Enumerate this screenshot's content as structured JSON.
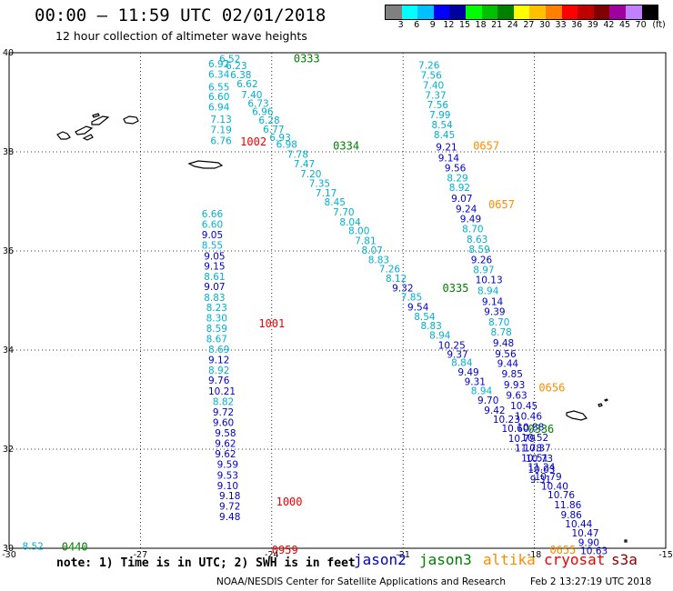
{
  "header": {
    "title": "00:00 – 11:59 UTC 02/01/2018",
    "subtitle": "12 hour collection of altimeter wave heights"
  },
  "scale": {
    "unit": "(ft)",
    "colors": [
      "#808080",
      "#00ffff",
      "#00c0ff",
      "#0000ff",
      "#0000a0",
      "#00ff00",
      "#00c000",
      "#008000",
      "#ffff00",
      "#ffc000",
      "#ff8000",
      "#ff0000",
      "#c00000",
      "#800000",
      "#a000a0",
      "#c080ff",
      "#000000"
    ],
    "labels": [
      "3",
      "6",
      "9",
      "12",
      "15",
      "18",
      "21",
      "24",
      "27",
      "30",
      "33",
      "36",
      "39",
      "42",
      "45",
      "70"
    ]
  },
  "axes": {
    "x_ticks": [
      "-30",
      "-27",
      "-24",
      "-21",
      "-18",
      "-15"
    ],
    "y_ticks": [
      "40",
      "38",
      "36",
      "34",
      "32",
      "30"
    ]
  },
  "tracks": [
    {
      "name": "track-0333",
      "time": "0333",
      "time_color": "#008000",
      "time_pos": [
        -23.5,
        39.9
      ],
      "points": [
        {
          "v": "6.52",
          "x": -25.2,
          "y": 39.88,
          "c": "#00b0d0"
        },
        {
          "v": "6.92",
          "x": -25.45,
          "y": 39.78,
          "c": "#00b0d0"
        },
        {
          "v": "6.23",
          "x": -25.05,
          "y": 39.74,
          "c": "#00b0d0"
        },
        {
          "v": "6.34",
          "x": -25.45,
          "y": 39.57,
          "c": "#00b0d0"
        },
        {
          "v": "6.38",
          "x": -24.95,
          "y": 39.56,
          "c": "#00b0d0"
        },
        {
          "v": "6.62",
          "x": -24.8,
          "y": 39.38,
          "c": "#00b0d0"
        },
        {
          "v": "6.55",
          "x": -25.45,
          "y": 39.31,
          "c": "#00b0d0"
        },
        {
          "v": "7.40",
          "x": -24.7,
          "y": 39.16,
          "c": "#00b0d0"
        },
        {
          "v": "6.60",
          "x": -25.45,
          "y": 39.12,
          "c": "#00b0d0"
        },
        {
          "v": "6.73",
          "x": -24.55,
          "y": 38.98,
          "c": "#00b0d0"
        },
        {
          "v": "6.94",
          "x": -25.45,
          "y": 38.91,
          "c": "#00b0d0"
        },
        {
          "v": "6.96",
          "x": -24.45,
          "y": 38.82,
          "c": "#00b0d0"
        },
        {
          "v": "7.13",
          "x": -25.4,
          "y": 38.66,
          "c": "#00b0d0"
        },
        {
          "v": "6.28",
          "x": -24.3,
          "y": 38.64,
          "c": "#00b0d0"
        },
        {
          "v": "7.19",
          "x": -25.4,
          "y": 38.45,
          "c": "#00b0d0"
        },
        {
          "v": "6.77",
          "x": -24.2,
          "y": 38.46,
          "c": "#00b0d0"
        },
        {
          "v": "6.93",
          "x": -24.05,
          "y": 38.29,
          "c": "#00b0d0"
        },
        {
          "v": "6.76",
          "x": -25.4,
          "y": 38.23,
          "c": "#00b0d0"
        },
        {
          "v": "6.98",
          "x": -23.9,
          "y": 38.16,
          "c": "#00b0d0"
        }
      ]
    },
    {
      "name": "track-0334",
      "time": "0334",
      "time_color": "#008000",
      "time_pos": [
        -22.6,
        38.14
      ],
      "points": [
        {
          "v": "7.78",
          "x": -23.65,
          "y": 37.95,
          "c": "#00b0d0"
        },
        {
          "v": "7.47",
          "x": -23.5,
          "y": 37.76,
          "c": "#00b0d0"
        },
        {
          "v": "7.20",
          "x": -23.35,
          "y": 37.56,
          "c": "#00b0d0"
        },
        {
          "v": "7.35",
          "x": -23.15,
          "y": 37.37,
          "c": "#00b0d0"
        },
        {
          "v": "7.17",
          "x": -23.0,
          "y": 37.17,
          "c": "#00b0d0"
        },
        {
          "v": "8.45",
          "x": -22.8,
          "y": 36.99,
          "c": "#00b0d0"
        },
        {
          "v": "7.70",
          "x": -22.6,
          "y": 36.79,
          "c": "#00b0d0"
        },
        {
          "v": "8.04",
          "x": -22.45,
          "y": 36.59,
          "c": "#00b0d0"
        },
        {
          "v": "8.00",
          "x": -22.25,
          "y": 36.41,
          "c": "#00b0d0"
        },
        {
          "v": "7.81",
          "x": -22.1,
          "y": 36.21,
          "c": "#00b0d0"
        },
        {
          "v": "8.07",
          "x": -21.95,
          "y": 36.02,
          "c": "#00b0d0"
        },
        {
          "v": "8.83",
          "x": -21.8,
          "y": 35.83,
          "c": "#00b0d0"
        },
        {
          "v": "7.26",
          "x": -21.55,
          "y": 35.64,
          "c": "#00b0d0"
        },
        {
          "v": "8.12",
          "x": -21.4,
          "y": 35.45,
          "c": "#00b0d0"
        }
      ]
    },
    {
      "name": "track-0335",
      "time": "0335",
      "time_color": "#008000",
      "time_pos": [
        -20.1,
        35.27
      ],
      "points": [
        {
          "v": "9.32",
          "x": -21.25,
          "y": 35.26,
          "c": "#0000cc"
        },
        {
          "v": "7.85",
          "x": -21.05,
          "y": 35.07,
          "c": "#00b0d0"
        },
        {
          "v": "9.54",
          "x": -20.9,
          "y": 34.87,
          "c": "#0000cc"
        },
        {
          "v": "8.54",
          "x": -20.75,
          "y": 34.68,
          "c": "#00b0d0"
        },
        {
          "v": "8.83",
          "x": -20.6,
          "y": 34.5,
          "c": "#00b0d0"
        },
        {
          "v": "8.94",
          "x": -20.4,
          "y": 34.3,
          "c": "#00b0d0"
        },
        {
          "v": "10.25",
          "x": -20.2,
          "y": 34.1,
          "c": "#0000cc"
        },
        {
          "v": "9.37",
          "x": -20.0,
          "y": 33.92,
          "c": "#0000cc"
        },
        {
          "v": "8.84",
          "x": -19.9,
          "y": 33.75,
          "c": "#00b0d0"
        },
        {
          "v": "9.49",
          "x": -19.75,
          "y": 33.56,
          "c": "#0000cc"
        },
        {
          "v": "9.31",
          "x": -19.6,
          "y": 33.37,
          "c": "#0000cc"
        },
        {
          "v": "8.94",
          "x": -19.45,
          "y": 33.18,
          "c": "#00b0d0"
        },
        {
          "v": "9.70",
          "x": -19.3,
          "y": 32.99,
          "c": "#0000cc"
        },
        {
          "v": "9.42",
          "x": -19.15,
          "y": 32.79,
          "c": "#0000cc"
        },
        {
          "v": "10.23",
          "x": -18.95,
          "y": 32.61,
          "c": "#0000cc"
        },
        {
          "v": "10.60",
          "x": -18.75,
          "y": 32.42,
          "c": "#0000cc"
        }
      ]
    },
    {
      "name": "track-0336",
      "time": "0336",
      "time_color": "#008000",
      "time_pos": [
        -18.15,
        32.42
      ],
      "points": [
        {
          "v": "10.79",
          "x": -18.6,
          "y": 32.22,
          "c": "#0000cc"
        },
        {
          "v": "11.78",
          "x": -18.45,
          "y": 32.03,
          "c": "#0000cc"
        },
        {
          "v": "10.51",
          "x": -18.3,
          "y": 31.83,
          "c": "#0000cc"
        },
        {
          "v": "11.24",
          "x": -18.15,
          "y": 31.64,
          "c": "#0000cc"
        },
        {
          "v": "10.79",
          "x": -18.0,
          "y": 31.45,
          "c": "#0000cc"
        },
        {
          "v": "10.40",
          "x": -17.85,
          "y": 31.26,
          "c": "#0000cc"
        },
        {
          "v": "10.76",
          "x": -17.7,
          "y": 31.08,
          "c": "#0000cc"
        },
        {
          "v": "11.86",
          "x": -17.55,
          "y": 30.88,
          "c": "#0000cc"
        },
        {
          "v": "9.86",
          "x": -17.4,
          "y": 30.68,
          "c": "#0000cc"
        },
        {
          "v": "10.44",
          "x": -17.3,
          "y": 30.5,
          "c": "#0000cc"
        },
        {
          "v": "10.47",
          "x": -17.15,
          "y": 30.31,
          "c": "#0000cc"
        },
        {
          "v": "9.90",
          "x": -17.0,
          "y": 30.12,
          "c": "#0000cc"
        },
        {
          "v": "10.63",
          "x": -16.95,
          "y": 29.95,
          "c": "#0000cc"
        }
      ]
    },
    {
      "name": "track-0657",
      "time": "0657",
      "time_color": "#ff8c00",
      "time_pos": [
        -19.4,
        38.14
      ],
      "points": [
        {
          "v": "7.26",
          "x": -20.65,
          "y": 39.75,
          "c": "#00b0d0"
        },
        {
          "v": "7.56",
          "x": -20.6,
          "y": 39.55,
          "c": "#00b0d0"
        },
        {
          "v": "7.40",
          "x": -20.55,
          "y": 39.35,
          "c": "#00b0d0"
        },
        {
          "v": "7.37",
          "x": -20.5,
          "y": 39.15,
          "c": "#00b0d0"
        },
        {
          "v": "7.56",
          "x": -20.45,
          "y": 38.95,
          "c": "#00b0d0"
        },
        {
          "v": "7.99",
          "x": -20.4,
          "y": 38.75,
          "c": "#00b0d0"
        },
        {
          "v": "8.54",
          "x": -20.35,
          "y": 38.55,
          "c": "#00b0d0"
        },
        {
          "v": "8.45",
          "x": -20.3,
          "y": 38.35,
          "c": "#00b0d0"
        },
        {
          "v": "9.21",
          "x": -20.25,
          "y": 38.1,
          "c": "#0000cc"
        },
        {
          "v": "9.14",
          "x": -20.2,
          "y": 37.88,
          "c": "#0000cc"
        },
        {
          "v": "9.56",
          "x": -20.05,
          "y": 37.68,
          "c": "#0000cc"
        },
        {
          "v": "8.29",
          "x": -20.0,
          "y": 37.48,
          "c": "#00b0d0"
        },
        {
          "v": "8.92",
          "x": -19.95,
          "y": 37.28,
          "c": "#00b0d0"
        },
        {
          "v": "9.07",
          "x": -19.9,
          "y": 37.06,
          "c": "#0000cc"
        },
        {
          "v": "9.24",
          "x": -19.8,
          "y": 36.85,
          "c": "#0000cc"
        },
        {
          "v": "9.49",
          "x": -19.7,
          "y": 36.65,
          "c": "#0000cc"
        },
        {
          "v": "8.70",
          "x": -19.65,
          "y": 36.45,
          "c": "#00b0d0"
        },
        {
          "v": "8.63",
          "x": -19.55,
          "y": 36.24,
          "c": "#00b0d0"
        },
        {
          "v": "8.59",
          "x": -19.5,
          "y": 36.04,
          "c": "#00b0d0"
        },
        {
          "v": "9.26",
          "x": -19.45,
          "y": 35.83,
          "c": "#0000cc"
        },
        {
          "v": "8.97",
          "x": -19.4,
          "y": 35.62,
          "c": "#00b0d0"
        },
        {
          "v": "10.13",
          "x": -19.35,
          "y": 35.42,
          "c": "#0000cc"
        },
        {
          "v": "8.94",
          "x": -19.3,
          "y": 35.2,
          "c": "#00b0d0"
        },
        {
          "v": "9.14",
          "x": -19.2,
          "y": 34.98,
          "c": "#0000cc"
        },
        {
          "v": "9.39",
          "x": -19.15,
          "y": 34.78,
          "c": "#0000cc"
        },
        {
          "v": "8.70",
          "x": -19.05,
          "y": 34.57,
          "c": "#00b0d0"
        },
        {
          "v": "8.78",
          "x": -19.0,
          "y": 34.37,
          "c": "#00b0d0"
        },
        {
          "v": "9.48",
          "x": -18.95,
          "y": 34.15,
          "c": "#0000cc"
        },
        {
          "v": "9.56",
          "x": -18.9,
          "y": 33.93,
          "c": "#0000cc"
        },
        {
          "v": "9.44",
          "x": -18.85,
          "y": 33.73,
          "c": "#0000cc"
        },
        {
          "v": "9.85",
          "x": -18.75,
          "y": 33.52,
          "c": "#0000cc"
        },
        {
          "v": "9.93",
          "x": -18.7,
          "y": 33.3,
          "c": "#0000cc"
        },
        {
          "v": "9.63",
          "x": -18.65,
          "y": 33.09,
          "c": "#0000cc"
        },
        {
          "v": "10.45",
          "x": -18.55,
          "y": 32.88,
          "c": "#0000cc"
        },
        {
          "v": "10.46",
          "x": -18.45,
          "y": 32.67,
          "c": "#0000cc"
        },
        {
          "v": "10.88",
          "x": -18.4,
          "y": 32.45,
          "c": "#0000cc"
        },
        {
          "v": "10.52",
          "x": -18.3,
          "y": 32.24,
          "c": "#0000cc"
        },
        {
          "v": "10.37",
          "x": -18.25,
          "y": 32.03,
          "c": "#0000cc"
        },
        {
          "v": "10.73",
          "x": -18.2,
          "y": 31.82,
          "c": "#0000cc"
        },
        {
          "v": "10.03",
          "x": -18.15,
          "y": 31.6,
          "c": "#0000cc"
        },
        {
          "v": "9.31",
          "x": -18.1,
          "y": 31.39,
          "c": "#0000cc"
        }
      ]
    },
    {
      "name": "track-1001",
      "time": "1001",
      "time_color": "#ee0000",
      "time_pos": [
        -24.3,
        34.55
      ],
      "points": []
    }
  ],
  "labels_extra": [
    {
      "text": "1002",
      "x": -24.72,
      "y": 38.22,
      "c": "#ee0000",
      "name": "time-label-1002"
    },
    {
      "text": "0657",
      "x": -19.05,
      "y": 36.95,
      "c": "#ff8c00",
      "name": "time-label-0657-b"
    },
    {
      "text": "0656",
      "x": -17.9,
      "y": 33.26,
      "c": "#ff8c00",
      "name": "time-label-0656"
    },
    {
      "text": "1000",
      "x": -23.9,
      "y": 30.95,
      "c": "#ee0000",
      "name": "time-label-1000"
    },
    {
      "text": "0959",
      "x": -24.0,
      "y": 29.98,
      "c": "#ee0000",
      "name": "time-label-0959"
    },
    {
      "text": "0655",
      "x": -17.65,
      "y": 29.98,
      "c": "#ff8c00",
      "name": "time-label-0655"
    },
    {
      "text": "0440",
      "x": -28.8,
      "y": 30.05,
      "c": "#008000",
      "name": "time-label-0440"
    }
  ],
  "track_1001_points": [
    {
      "v": "6.66",
      "x": -25.6,
      "y": 36.75,
      "c": "#00b0d0"
    },
    {
      "v": "6.60",
      "x": -25.6,
      "y": 36.54,
      "c": "#00b0d0"
    },
    {
      "v": "9.05",
      "x": -25.6,
      "y": 36.33,
      "c": "#0000cc"
    },
    {
      "v": "8.55",
      "x": -25.6,
      "y": 36.12,
      "c": "#00b0d0"
    },
    {
      "v": "9.05",
      "x": -25.55,
      "y": 35.9,
      "c": "#0000cc"
    },
    {
      "v": "9.15",
      "x": -25.55,
      "y": 35.7,
      "c": "#0000cc"
    },
    {
      "v": "8.61",
      "x": -25.55,
      "y": 35.49,
      "c": "#00b0d0"
    },
    {
      "v": "9.07",
      "x": -25.55,
      "y": 35.28,
      "c": "#0000cc"
    },
    {
      "v": "8.83",
      "x": -25.55,
      "y": 35.06,
      "c": "#00b0d0"
    },
    {
      "v": "8.23",
      "x": -25.5,
      "y": 34.86,
      "c": "#00b0d0"
    },
    {
      "v": "8.30",
      "x": -25.5,
      "y": 34.65,
      "c": "#00b0d0"
    },
    {
      "v": "8.59",
      "x": -25.5,
      "y": 34.44,
      "c": "#00b0d0"
    },
    {
      "v": "8.67",
      "x": -25.5,
      "y": 34.23,
      "c": "#00b0d0"
    },
    {
      "v": "8.69",
      "x": -25.45,
      "y": 34.02,
      "c": "#00b0d0"
    },
    {
      "v": "9.12",
      "x": -25.45,
      "y": 33.81,
      "c": "#0000cc"
    },
    {
      "v": "8.92",
      "x": -25.45,
      "y": 33.6,
      "c": "#00b0d0"
    },
    {
      "v": "9.76",
      "x": -25.45,
      "y": 33.39,
      "c": "#0000cc"
    },
    {
      "v": "10.21",
      "x": -25.45,
      "y": 33.17,
      "c": "#0000cc"
    },
    {
      "v": "8.82",
      "x": -25.35,
      "y": 32.96,
      "c": "#00b0d0"
    },
    {
      "v": "9.72",
      "x": -25.35,
      "y": 32.75,
      "c": "#0000cc"
    },
    {
      "v": "9.60",
      "x": -25.35,
      "y": 32.54,
      "c": "#0000cc"
    },
    {
      "v": "9.58",
      "x": -25.3,
      "y": 32.33,
      "c": "#0000cc"
    },
    {
      "v": "9.62",
      "x": -25.3,
      "y": 32.12,
      "c": "#0000cc"
    },
    {
      "v": "9.62",
      "x": -25.3,
      "y": 31.91,
      "c": "#0000cc"
    },
    {
      "v": "9.59",
      "x": -25.25,
      "y": 31.7,
      "c": "#0000cc"
    },
    {
      "v": "9.53",
      "x": -25.25,
      "y": 31.48,
      "c": "#0000cc"
    },
    {
      "v": "9.10",
      "x": -25.25,
      "y": 31.27,
      "c": "#0000cc"
    },
    {
      "v": "9.18",
      "x": -25.2,
      "y": 31.06,
      "c": "#0000cc"
    },
    {
      "v": "9.72",
      "x": -25.2,
      "y": 30.85,
      "c": "#0000cc"
    },
    {
      "v": "9.48",
      "x": -25.2,
      "y": 30.64,
      "c": "#0000cc"
    }
  ],
  "lone_point": {
    "v": "8.52",
    "x": -29.7,
    "y": 30.05,
    "c": "#00b0d0"
  },
  "footer": {
    "note": "note: 1) Time is in UTC; 2) SWH is in feet",
    "satellites": [
      {
        "name": "jason2",
        "color": "#0000cc"
      },
      {
        "name": "jason3",
        "color": "#008000"
      },
      {
        "name": "altika",
        "color": "#ff8c00"
      },
      {
        "name": "cryosat",
        "color": "#ee0000"
      },
      {
        "name": "s3a",
        "color": "#8b0000"
      }
    ],
    "credit": "NOAA/NESDIS Center for Satellite Applications and Research",
    "timestamp": "Feb  2 13:27:19 UTC 2018"
  }
}
